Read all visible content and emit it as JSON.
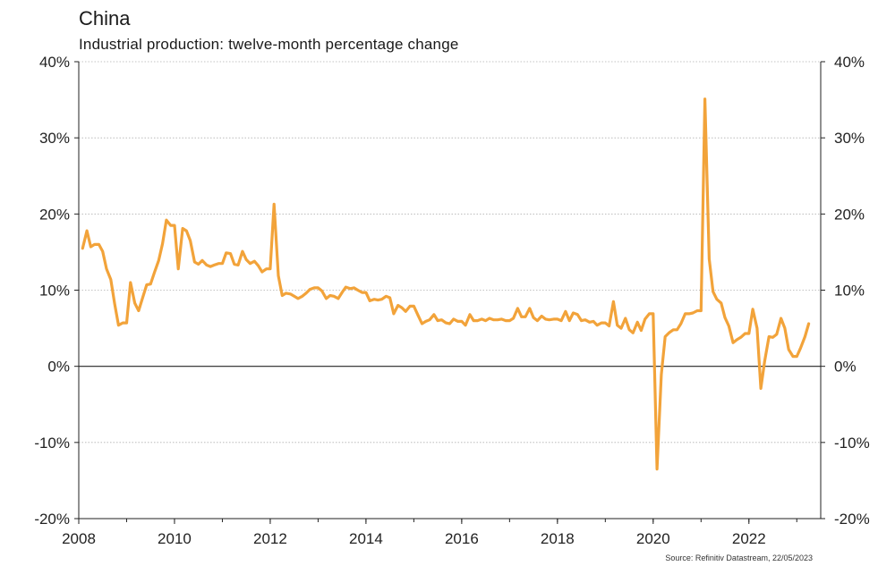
{
  "header": {
    "title": "China",
    "subtitle": "Industrial production: twelve-month percentage change"
  },
  "footer": {
    "source": "Source: Refinitiv Datastream, 22/05/2023"
  },
  "colors": {
    "series": "#f2a33a",
    "gridline": "#b0b0b0",
    "zero_line": "#222222",
    "axis": "#222222"
  },
  "chart_data": {
    "type": "line",
    "title": "China",
    "subtitle": "Industrial production: twelve-month percentage change",
    "xlabel": "",
    "ylabel": "",
    "xlim": [
      2008,
      2023.5
    ],
    "ylim": [
      -20,
      40
    ],
    "y_ticks": [
      40,
      30,
      20,
      10,
      0,
      -10,
      -20
    ],
    "y_tick_labels": [
      "40%",
      "30%",
      "20%",
      "10%",
      "0%",
      "-10%",
      "-20%"
    ],
    "x_ticks": [
      2008,
      2010,
      2012,
      2014,
      2016,
      2018,
      2020,
      2022
    ],
    "x_tick_labels": [
      "2008",
      "2010",
      "2012",
      "2014",
      "2016",
      "2018",
      "2020",
      "2022"
    ],
    "dual_y_axis": true,
    "grid": "horizontal dotted",
    "legend": "none",
    "series": [
      {
        "points": [
          [
            2008.08,
            15.5
          ],
          [
            2008.17,
            17.8
          ],
          [
            2008.25,
            15.7
          ],
          [
            2008.33,
            16.0
          ],
          [
            2008.42,
            16.0
          ],
          [
            2008.5,
            15.1
          ],
          [
            2008.58,
            12.8
          ],
          [
            2008.67,
            11.4
          ],
          [
            2008.75,
            8.2
          ],
          [
            2008.83,
            5.4
          ],
          [
            2008.92,
            5.7
          ],
          [
            2009.0,
            5.7
          ],
          [
            2009.08,
            11.0
          ],
          [
            2009.17,
            8.3
          ],
          [
            2009.25,
            7.3
          ],
          [
            2009.33,
            8.9
          ],
          [
            2009.42,
            10.7
          ],
          [
            2009.5,
            10.8
          ],
          [
            2009.58,
            12.3
          ],
          [
            2009.67,
            13.9
          ],
          [
            2009.75,
            16.1
          ],
          [
            2009.83,
            19.2
          ],
          [
            2009.92,
            18.5
          ],
          [
            2010.0,
            18.5
          ],
          [
            2010.08,
            12.8
          ],
          [
            2010.17,
            18.1
          ],
          [
            2010.25,
            17.8
          ],
          [
            2010.33,
            16.5
          ],
          [
            2010.42,
            13.7
          ],
          [
            2010.5,
            13.4
          ],
          [
            2010.58,
            13.9
          ],
          [
            2010.67,
            13.3
          ],
          [
            2010.75,
            13.1
          ],
          [
            2010.83,
            13.3
          ],
          [
            2010.92,
            13.5
          ],
          [
            2011.0,
            13.5
          ],
          [
            2011.08,
            14.9
          ],
          [
            2011.17,
            14.8
          ],
          [
            2011.25,
            13.4
          ],
          [
            2011.33,
            13.3
          ],
          [
            2011.42,
            15.1
          ],
          [
            2011.5,
            14.0
          ],
          [
            2011.58,
            13.5
          ],
          [
            2011.67,
            13.8
          ],
          [
            2011.75,
            13.2
          ],
          [
            2011.83,
            12.4
          ],
          [
            2011.92,
            12.8
          ],
          [
            2012.0,
            12.8
          ],
          [
            2012.08,
            21.3
          ],
          [
            2012.17,
            11.9
          ],
          [
            2012.25,
            9.3
          ],
          [
            2012.33,
            9.6
          ],
          [
            2012.42,
            9.5
          ],
          [
            2012.5,
            9.2
          ],
          [
            2012.58,
            8.9
          ],
          [
            2012.67,
            9.2
          ],
          [
            2012.75,
            9.6
          ],
          [
            2012.83,
            10.1
          ],
          [
            2012.92,
            10.3
          ],
          [
            2013.0,
            10.3
          ],
          [
            2013.08,
            9.9
          ],
          [
            2013.17,
            8.9
          ],
          [
            2013.25,
            9.3
          ],
          [
            2013.33,
            9.2
          ],
          [
            2013.42,
            8.9
          ],
          [
            2013.5,
            9.7
          ],
          [
            2013.58,
            10.4
          ],
          [
            2013.67,
            10.2
          ],
          [
            2013.75,
            10.3
          ],
          [
            2013.83,
            10.0
          ],
          [
            2013.92,
            9.7
          ],
          [
            2014.0,
            9.7
          ],
          [
            2014.08,
            8.6
          ],
          [
            2014.17,
            8.8
          ],
          [
            2014.25,
            8.7
          ],
          [
            2014.33,
            8.8
          ],
          [
            2014.42,
            9.2
          ],
          [
            2014.5,
            9.0
          ],
          [
            2014.58,
            6.9
          ],
          [
            2014.67,
            8.0
          ],
          [
            2014.75,
            7.7
          ],
          [
            2014.83,
            7.2
          ],
          [
            2014.92,
            7.9
          ],
          [
            2015.0,
            7.9
          ],
          [
            2015.08,
            6.8
          ],
          [
            2015.17,
            5.6
          ],
          [
            2015.25,
            5.9
          ],
          [
            2015.33,
            6.1
          ],
          [
            2015.42,
            6.8
          ],
          [
            2015.5,
            6.0
          ],
          [
            2015.58,
            6.1
          ],
          [
            2015.67,
            5.7
          ],
          [
            2015.75,
            5.6
          ],
          [
            2015.83,
            6.2
          ],
          [
            2015.92,
            5.9
          ],
          [
            2016.0,
            5.9
          ],
          [
            2016.08,
            5.4
          ],
          [
            2016.17,
            6.8
          ],
          [
            2016.25,
            6.0
          ],
          [
            2016.33,
            6.0
          ],
          [
            2016.42,
            6.2
          ],
          [
            2016.5,
            6.0
          ],
          [
            2016.58,
            6.3
          ],
          [
            2016.67,
            6.1
          ],
          [
            2016.75,
            6.1
          ],
          [
            2016.83,
            6.2
          ],
          [
            2016.92,
            6.0
          ],
          [
            2017.0,
            6.0
          ],
          [
            2017.08,
            6.3
          ],
          [
            2017.17,
            7.6
          ],
          [
            2017.25,
            6.5
          ],
          [
            2017.33,
            6.5
          ],
          [
            2017.42,
            7.6
          ],
          [
            2017.5,
            6.4
          ],
          [
            2017.58,
            6.0
          ],
          [
            2017.67,
            6.6
          ],
          [
            2017.75,
            6.2
          ],
          [
            2017.83,
            6.1
          ],
          [
            2017.92,
            6.2
          ],
          [
            2018.0,
            6.2
          ],
          [
            2018.08,
            6.0
          ],
          [
            2018.17,
            7.2
          ],
          [
            2018.25,
            6.0
          ],
          [
            2018.33,
            7.0
          ],
          [
            2018.42,
            6.8
          ],
          [
            2018.5,
            6.0
          ],
          [
            2018.58,
            6.1
          ],
          [
            2018.67,
            5.8
          ],
          [
            2018.75,
            5.9
          ],
          [
            2018.83,
            5.4
          ],
          [
            2018.92,
            5.7
          ],
          [
            2019.0,
            5.7
          ],
          [
            2019.08,
            5.3
          ],
          [
            2019.17,
            8.5
          ],
          [
            2019.25,
            5.4
          ],
          [
            2019.33,
            5.0
          ],
          [
            2019.42,
            6.3
          ],
          [
            2019.5,
            4.8
          ],
          [
            2019.58,
            4.4
          ],
          [
            2019.67,
            5.8
          ],
          [
            2019.75,
            4.7
          ],
          [
            2019.83,
            6.2
          ],
          [
            2019.92,
            6.9
          ],
          [
            2020.0,
            6.9
          ],
          [
            2020.08,
            -13.5
          ],
          [
            2020.17,
            -1.1
          ],
          [
            2020.25,
            3.9
          ],
          [
            2020.33,
            4.4
          ],
          [
            2020.42,
            4.8
          ],
          [
            2020.5,
            4.8
          ],
          [
            2020.58,
            5.6
          ],
          [
            2020.67,
            6.9
          ],
          [
            2020.75,
            6.9
          ],
          [
            2020.83,
            7.0
          ],
          [
            2020.92,
            7.3
          ],
          [
            2021.0,
            7.3
          ],
          [
            2021.08,
            35.1
          ],
          [
            2021.17,
            14.1
          ],
          [
            2021.25,
            9.8
          ],
          [
            2021.33,
            8.8
          ],
          [
            2021.42,
            8.3
          ],
          [
            2021.5,
            6.4
          ],
          [
            2021.58,
            5.3
          ],
          [
            2021.67,
            3.1
          ],
          [
            2021.75,
            3.5
          ],
          [
            2021.83,
            3.8
          ],
          [
            2021.92,
            4.3
          ],
          [
            2022.0,
            4.3
          ],
          [
            2022.08,
            7.5
          ],
          [
            2022.17,
            5.0
          ],
          [
            2022.25,
            -2.9
          ],
          [
            2022.33,
            0.7
          ],
          [
            2022.42,
            3.9
          ],
          [
            2022.5,
            3.8
          ],
          [
            2022.58,
            4.2
          ],
          [
            2022.67,
            6.3
          ],
          [
            2022.75,
            5.0
          ],
          [
            2022.83,
            2.2
          ],
          [
            2022.92,
            1.3
          ],
          [
            2023.0,
            1.3
          ],
          [
            2023.08,
            2.4
          ],
          [
            2023.17,
            3.9
          ],
          [
            2023.25,
            5.6
          ]
        ]
      }
    ]
  }
}
